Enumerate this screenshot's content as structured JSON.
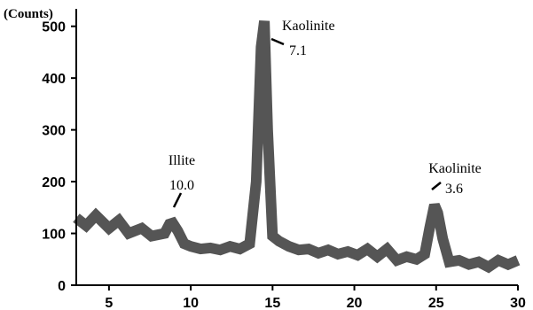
{
  "chart_data": {
    "type": "line",
    "title": "",
    "xlabel": "",
    "ylabel": "(Counts)",
    "xlim": [
      3,
      30
    ],
    "ylim": [
      0,
      520
    ],
    "grid": false,
    "legend": "none",
    "x_ticks": [
      5,
      10,
      15,
      20,
      25,
      30
    ],
    "y_ticks": [
      0,
      100,
      200,
      300,
      400,
      500
    ],
    "series": [
      {
        "color": "#555555",
        "x": [
          3.0,
          3.6,
          4.2,
          5.0,
          5.6,
          6.2,
          7.0,
          7.6,
          8.4,
          8.7,
          8.9,
          9.2,
          9.6,
          10.0,
          10.6,
          11.2,
          11.8,
          12.4,
          13.0,
          13.6,
          14.0,
          14.3,
          14.5,
          14.7,
          15.0,
          15.4,
          16.0,
          16.6,
          17.2,
          17.8,
          18.4,
          19.0,
          19.6,
          20.2,
          20.8,
          21.4,
          22.0,
          22.6,
          23.2,
          23.8,
          24.3,
          24.6,
          24.9,
          25.1,
          25.4,
          25.8,
          26.4,
          27.0,
          27.6,
          28.2,
          28.8,
          29.4,
          30.0
        ],
        "y": [
          130,
          115,
          135,
          110,
          125,
          100,
          110,
          95,
          100,
          118,
          120,
          105,
          80,
          75,
          70,
          72,
          68,
          75,
          70,
          80,
          200,
          460,
          510,
          300,
          95,
          85,
          75,
          68,
          70,
          62,
          68,
          60,
          65,
          58,
          70,
          55,
          70,
          48,
          55,
          50,
          60,
          110,
          155,
          140,
          90,
          45,
          48,
          40,
          45,
          35,
          48,
          40,
          48
        ]
      }
    ],
    "annotations": [
      {
        "name": "Illite",
        "value": "10.0",
        "x": 8.7,
        "y": 120
      },
      {
        "name": "Kaolinite",
        "value": "7.1",
        "x": 14.5,
        "y": 510
      },
      {
        "name": "Kaolinite",
        "value": "3.6",
        "x": 25.0,
        "y": 155
      }
    ]
  }
}
